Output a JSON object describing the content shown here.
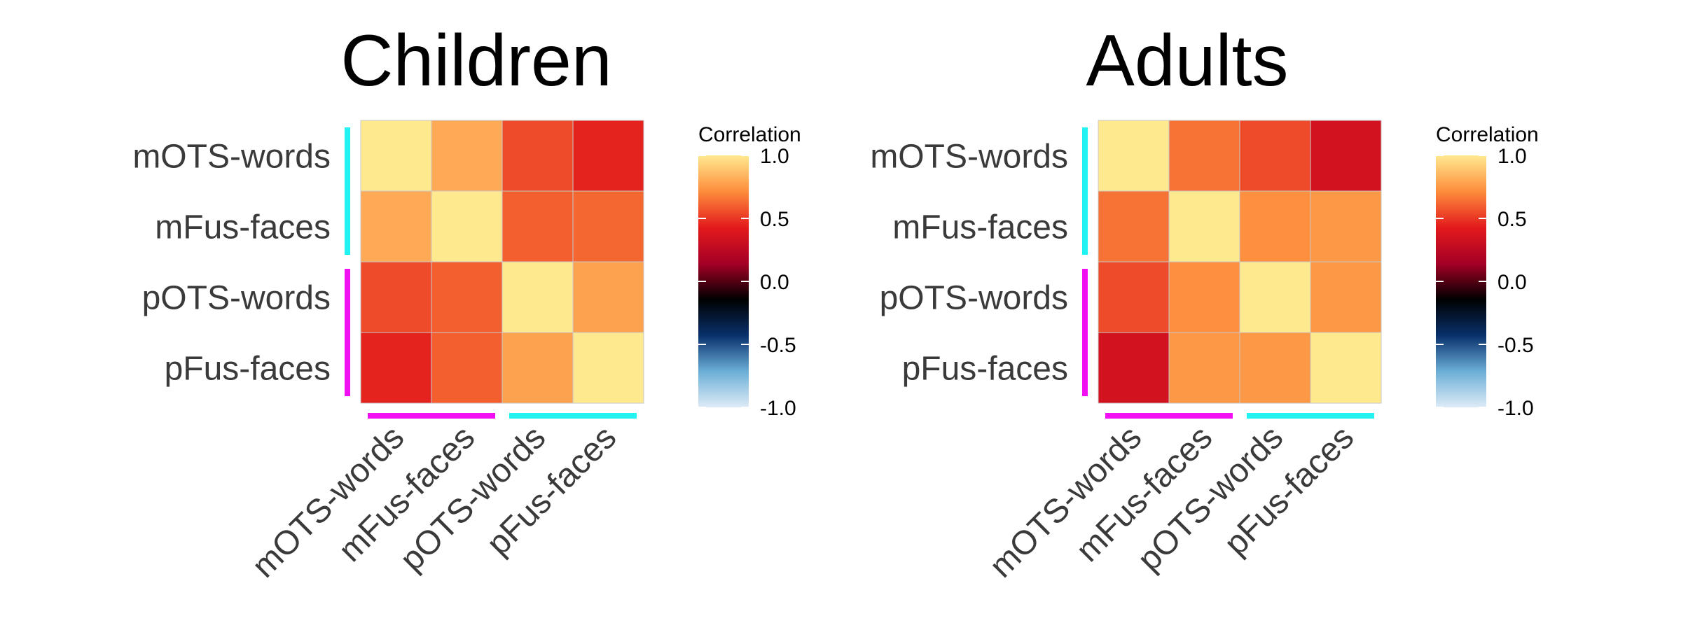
{
  "chart_data": [
    {
      "type": "heatmap",
      "title": "Children",
      "rows": [
        "mOTS-words",
        "mFus-faces",
        "pOTS-words",
        "pFus-faces"
      ],
      "columns": [
        "mOTS-words",
        "mFus-faces",
        "pOTS-words",
        "pFus-faces"
      ],
      "values": [
        [
          1.0,
          0.8,
          0.55,
          0.45
        ],
        [
          0.8,
          1.0,
          0.6,
          0.62
        ],
        [
          0.55,
          0.6,
          1.0,
          0.78
        ],
        [
          0.45,
          0.6,
          0.78,
          1.0
        ]
      ],
      "colorbar": {
        "title": "Correlation",
        "range": [
          -1.0,
          1.0
        ],
        "ticks": [
          "1.0",
          "0.5",
          "0.0",
          "-0.5",
          "-1.0"
        ]
      },
      "row_groups": [
        {
          "rows": [
            0,
            1
          ],
          "color": "#22f2f2"
        },
        {
          "rows": [
            2,
            3
          ],
          "color": "#f20ff2"
        }
      ],
      "column_groups": [
        {
          "columns": [
            0,
            1
          ],
          "color": "#f20ff2"
        },
        {
          "columns": [
            2,
            3
          ],
          "color": "#22f2f2"
        }
      ]
    },
    {
      "type": "heatmap",
      "title": "Adults",
      "rows": [
        "mOTS-words",
        "mFus-faces",
        "pOTS-words",
        "pFus-faces"
      ],
      "columns": [
        "mOTS-words",
        "mFus-faces",
        "pOTS-words",
        "pFus-faces"
      ],
      "values": [
        [
          1.0,
          0.65,
          0.55,
          0.35
        ],
        [
          0.65,
          1.0,
          0.72,
          0.75
        ],
        [
          0.55,
          0.72,
          1.0,
          0.75
        ],
        [
          0.35,
          0.75,
          0.75,
          1.0
        ]
      ],
      "colorbar": {
        "title": "Correlation",
        "range": [
          -1.0,
          1.0
        ],
        "ticks": [
          "1.0",
          "0.5",
          "0.0",
          "-0.5",
          "-1.0"
        ]
      },
      "row_groups": [
        {
          "rows": [
            0,
            1
          ],
          "color": "#22f2f2"
        },
        {
          "rows": [
            2,
            3
          ],
          "color": "#f20ff2"
        }
      ],
      "column_groups": [
        {
          "columns": [
            0,
            1
          ],
          "color": "#f20ff2"
        },
        {
          "columns": [
            2,
            3
          ],
          "color": "#22f2f2"
        }
      ]
    }
  ],
  "colorscale": [
    "#deebf7",
    "#6baed6",
    "#08306b",
    "#000000",
    "#a50026",
    "#e31a1c",
    "#fd8d3c",
    "#ffe98f"
  ]
}
